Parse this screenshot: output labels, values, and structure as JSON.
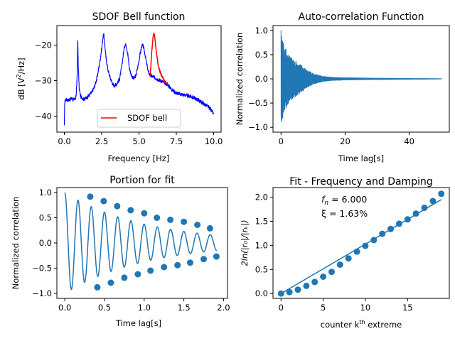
{
  "chart_data": [
    {
      "type": "line",
      "title": "SDOF Bell function",
      "xlabel": "Frequency [Hz]",
      "ylabel_prefix": "dB [V",
      "ylabel_sup": "2",
      "ylabel_suffix": "/Hz]",
      "xlim": [
        -0.5,
        10.5
      ],
      "ylim": [
        -44.5,
        -14.5
      ],
      "xticks": [
        0.0,
        2.5,
        5.0,
        7.5,
        10.0
      ],
      "xtick_labels": [
        "0.0",
        "2.5",
        "5.0",
        "7.5",
        "10.0"
      ],
      "yticks": [
        -40,
        -30,
        -20
      ],
      "ytick_labels": [
        "−40",
        "−30",
        "−20"
      ],
      "series": [
        {
          "color": "#0000ff",
          "x": [
            0.0,
            0.02,
            0.1,
            0.3,
            0.5,
            0.7,
            0.8,
            0.86,
            0.9,
            0.94,
            1.0,
            1.1,
            1.3,
            1.5,
            1.8,
            2.0,
            2.2,
            2.35,
            2.5,
            2.58,
            2.64,
            2.7,
            2.8,
            2.95,
            3.1,
            3.3,
            3.5,
            3.7,
            3.85,
            3.95,
            4.05,
            4.15,
            4.25,
            4.35,
            4.5,
            4.65,
            4.8,
            4.95,
            5.1,
            5.2,
            5.3,
            5.4,
            5.5,
            5.62,
            5.75,
            6.9,
            7.2,
            7.5,
            8.0,
            8.5,
            9.0,
            9.5,
            9.8,
            10.0
          ],
          "y": [
            -43.0,
            -36.0,
            -35.3,
            -35.5,
            -35.0,
            -35.5,
            -34.0,
            -28.0,
            -19.0,
            -27.0,
            -32.5,
            -34.5,
            -35.2,
            -34.8,
            -33.5,
            -32.0,
            -29.0,
            -25.5,
            -21.0,
            -18.0,
            -17.0,
            -19.5,
            -24.0,
            -27.5,
            -29.5,
            -31.5,
            -31.0,
            -29.5,
            -26.0,
            -22.5,
            -19.8,
            -20.0,
            -22.5,
            -26.5,
            -28.5,
            -29.5,
            -28.5,
            -25.5,
            -22.0,
            -20.0,
            -20.5,
            -22.5,
            -25.0,
            -27.5,
            -28.5,
            -31.0,
            -32.5,
            -33.5,
            -34.0,
            -34.5,
            -35.5,
            -37.0,
            -38.0,
            -39.5
          ]
        },
        {
          "color": "#ff0000",
          "x": [
            5.75,
            5.85,
            5.95,
            6.0,
            6.05,
            6.15,
            6.3,
            6.5,
            6.7,
            6.9
          ],
          "y": [
            -28.5,
            -22.0,
            -17.5,
            -16.5,
            -17.5,
            -21.5,
            -26.0,
            -28.5,
            -30.0,
            -31.0
          ]
        }
      ],
      "legend": {
        "label": "SDOF bell",
        "color": "#ff0000",
        "position": "lower-center"
      }
    },
    {
      "type": "line",
      "title": "Auto-correlation Function",
      "xlabel": "Time lag[s]",
      "ylabel": "Normalized correlation",
      "xlim": [
        -2.5,
        52.5
      ],
      "ylim": [
        -1.1,
        1.1
      ],
      "xticks": [
        0,
        20,
        40
      ],
      "xtick_labels": [
        "0",
        "20",
        "40"
      ],
      "yticks": [
        -1.0,
        -0.5,
        0.0,
        0.5,
        1.0
      ],
      "ytick_labels": [
        "−1.0",
        "−0.5",
        "0.0",
        "0.5",
        "1.0"
      ],
      "envelope": {
        "t": [
          0,
          1,
          2,
          3,
          4,
          6,
          8,
          10,
          13,
          16,
          20,
          25,
          30,
          40,
          50
        ],
        "amp": [
          1.0,
          0.7,
          0.55,
          0.45,
          0.4,
          0.3,
          0.2,
          0.12,
          0.06,
          0.04,
          0.03,
          0.025,
          0.02,
          0.015,
          0.01
        ]
      },
      "series": [
        {
          "color": "#1f77b4",
          "name": ""
        }
      ]
    },
    {
      "type": "line",
      "title": "Portion for fit",
      "xlabel": "Time lag[s]",
      "ylabel": "Normalized correlation",
      "xlim": [
        -0.1,
        2.05
      ],
      "ylim": [
        -1.1,
        1.1
      ],
      "xticks": [
        0.0,
        0.5,
        1.0,
        1.5,
        2.0
      ],
      "xtick_labels": [
        "0.0",
        "0.5",
        "1.0",
        "1.5",
        "2.0"
      ],
      "yticks": [
        -1.0,
        -0.5,
        0.0,
        0.5,
        1.0
      ],
      "ytick_labels": [
        "−1.0",
        "−0.5",
        "0.0",
        "0.5",
        "1.0"
      ],
      "signal": {
        "frequency_hz": 6.0,
        "damping_ratio": 0.0163,
        "t_start": 0.0,
        "t_end": 1.917
      },
      "extremes": {
        "x": [
          0.32,
          0.41,
          0.49,
          0.58,
          0.66,
          0.75,
          0.83,
          0.92,
          1.0,
          1.08,
          1.16,
          1.25,
          1.33,
          1.42,
          1.5,
          1.58,
          1.67,
          1.75,
          1.83,
          1.91
        ],
        "y": [
          0.92,
          -0.88,
          0.83,
          -0.79,
          0.73,
          -0.69,
          0.65,
          -0.62,
          0.59,
          -0.55,
          0.5,
          -0.48,
          0.46,
          -0.44,
          0.42,
          -0.39,
          0.36,
          -0.32,
          0.29,
          -0.27
        ]
      },
      "series": [
        {
          "color": "#1f77b4",
          "name": ""
        }
      ]
    },
    {
      "type": "scatter",
      "title": "Fit - Frequency and Damping",
      "xlabel_prefix": "counter k",
      "xlabel_sup": "th",
      "xlabel_suffix": " extreme",
      "ylabel": "2ln(|r₀|/|rₖ|)",
      "xlim": [
        -0.95,
        19.95
      ],
      "ylim": [
        -0.1,
        2.2
      ],
      "xticks": [
        0,
        5,
        10,
        15
      ],
      "xtick_labels": [
        "0",
        "5",
        "10",
        "15"
      ],
      "yticks": [
        0.0,
        0.5,
        1.0,
        1.5,
        2.0
      ],
      "ytick_labels": [
        "0.0",
        "0.5",
        "1.0",
        "1.5",
        "2.0"
      ],
      "points": {
        "x": [
          0,
          1,
          2,
          3,
          4,
          5,
          6,
          7,
          8,
          9,
          10,
          11,
          12,
          13,
          14,
          15,
          16,
          17,
          18,
          19
        ],
        "y": [
          0.0,
          0.03,
          0.08,
          0.16,
          0.24,
          0.35,
          0.45,
          0.6,
          0.73,
          0.87,
          0.99,
          1.11,
          1.24,
          1.34,
          1.45,
          1.54,
          1.66,
          1.78,
          1.92,
          2.07
        ]
      },
      "fit_line": {
        "x": [
          0,
          19
        ],
        "y": [
          0.0,
          1.95
        ]
      },
      "annotation_fn_prefix": "f",
      "annotation_fn_sub": "n",
      "annotation_fn_suffix": " = 6.000",
      "annotation_xi": "ξ = 1.63%",
      "series": [
        {
          "color": "#1f77b4",
          "name": ""
        }
      ]
    }
  ]
}
